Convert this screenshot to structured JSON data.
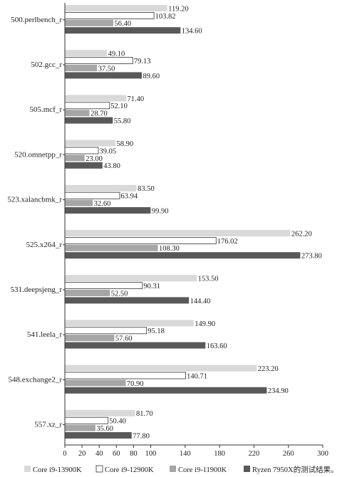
{
  "chart_data": {
    "type": "bar",
    "orientation": "horizontal",
    "categories": [
      "500.perlbench_r",
      "502.gcc_r",
      "505.mcf_r",
      "520.omnetpp_r",
      "523.xalancbmk_r",
      "525.x264_r",
      "531.deepsjeng_r",
      "541.leela_r",
      "548.exchange2_r",
      "557.xz_r"
    ],
    "category_labels": [
      "500.perlbench_r",
      "502.gcc_r",
      "505.mcf_r",
      "520.omnetpp_r",
      "523.xalancbmk_r",
      "525.x264_r",
      "531.deepsjeng_r",
      "541.leela_r",
      "548.exchange2_r",
      "557.xz_r"
    ],
    "series": [
      {
        "name": "Core i9-13900K",
        "color": "#d9d9d9",
        "values": [
          119.2,
          49.1,
          71.4,
          58.9,
          83.5,
          262.2,
          153.5,
          149.9,
          223.2,
          81.7
        ],
        "labels": [
          "119.20",
          "49.10",
          "71.40",
          "58.90",
          "83.50",
          "262.20",
          "153.50",
          "149.90",
          "223.20",
          "81.70"
        ]
      },
      {
        "name": "Core i9-12900K",
        "color": "#ffffff",
        "values": [
          103.82,
          79.13,
          52.1,
          39.05,
          63.94,
          176.02,
          90.31,
          95.18,
          140.71,
          50.4
        ],
        "labels": [
          "103.82",
          "79.13",
          "52.10",
          "39.05",
          "63.94",
          "176.02",
          "90.31",
          "95.18",
          "140.71",
          "50.40"
        ]
      },
      {
        "name": "Core i9-11900K",
        "color": "#a6a6a6",
        "values": [
          56.4,
          37.5,
          28.7,
          23.0,
          32.6,
          108.3,
          52.5,
          57.6,
          70.9,
          35.6
        ],
        "labels": [
          "56.40",
          "37.50",
          "28.70",
          "23.00",
          "32.60",
          "108.30",
          "52.50",
          "57.60",
          "70.90",
          "35.60"
        ]
      },
      {
        "name": "Ryzen 7950X",
        "color": "#595959",
        "values": [
          134.6,
          89.6,
          55.8,
          43.8,
          99.9,
          273.8,
          144.4,
          163.6,
          234.9,
          77.8
        ],
        "labels": [
          "134.60",
          "89.60",
          "55.80",
          "43.80",
          "99.90",
          "273.80",
          "144.40",
          "163.60",
          "234.90",
          "77.80"
        ]
      }
    ],
    "legend_suffix": "的测试结果。",
    "xlim": [
      0,
      300
    ],
    "xticks": [
      0,
      20,
      40,
      60,
      80,
      100,
      140,
      180,
      220,
      260,
      300
    ],
    "xtick_labels": [
      "0",
      "20",
      "40",
      "60",
      "80",
      "100",
      "140",
      "180",
      "220",
      "260",
      "300"
    ],
    "grid": false,
    "legend_position": "bottom",
    "title": "",
    "xlabel": "",
    "ylabel": ""
  }
}
